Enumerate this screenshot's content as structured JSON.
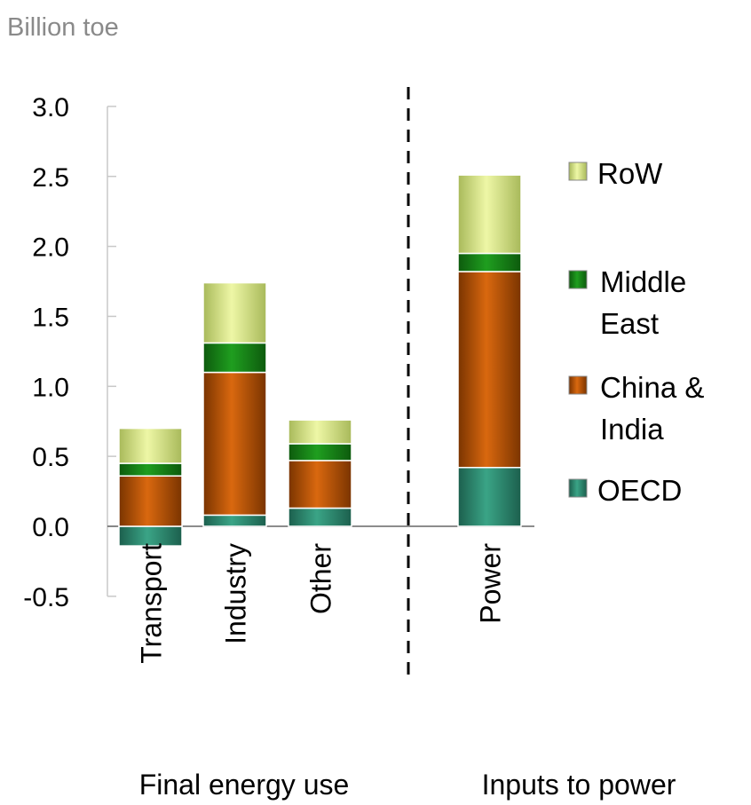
{
  "chart_data": {
    "type": "bar",
    "stacked": true,
    "ylabel": "Billion toe",
    "ylim": [
      -0.5,
      3.0
    ],
    "yticks": [
      "3.0",
      "2.5",
      "2.0",
      "1.5",
      "1.0",
      "0.5",
      "0.0",
      "-0.5"
    ],
    "categories": [
      "Transport",
      "Industry",
      "Other",
      "Power"
    ],
    "groups": [
      {
        "label": "Final energy use"
      },
      {
        "label": "Inputs to power"
      }
    ],
    "series": [
      {
        "name": "OECD",
        "values": [
          -0.14,
          0.08,
          0.13,
          0.42
        ],
        "color": "#2f8f73"
      },
      {
        "name": "China & India",
        "values": [
          0.36,
          1.02,
          0.34,
          1.4
        ],
        "color": "#c85b0c"
      },
      {
        "name": "Middle East",
        "values": [
          0.09,
          0.21,
          0.12,
          0.13
        ],
        "color": "#1b8a1b"
      },
      {
        "name": "RoW",
        "values": [
          0.25,
          0.43,
          0.17,
          0.56
        ],
        "color": "#d6e58a"
      }
    ],
    "legend_labels": {
      "row": "RoW",
      "middle_east": [
        "Middle",
        "East"
      ],
      "china_india": [
        "China &",
        "India"
      ],
      "oecd": "OECD"
    },
    "legend_position": "right",
    "grid": false
  }
}
